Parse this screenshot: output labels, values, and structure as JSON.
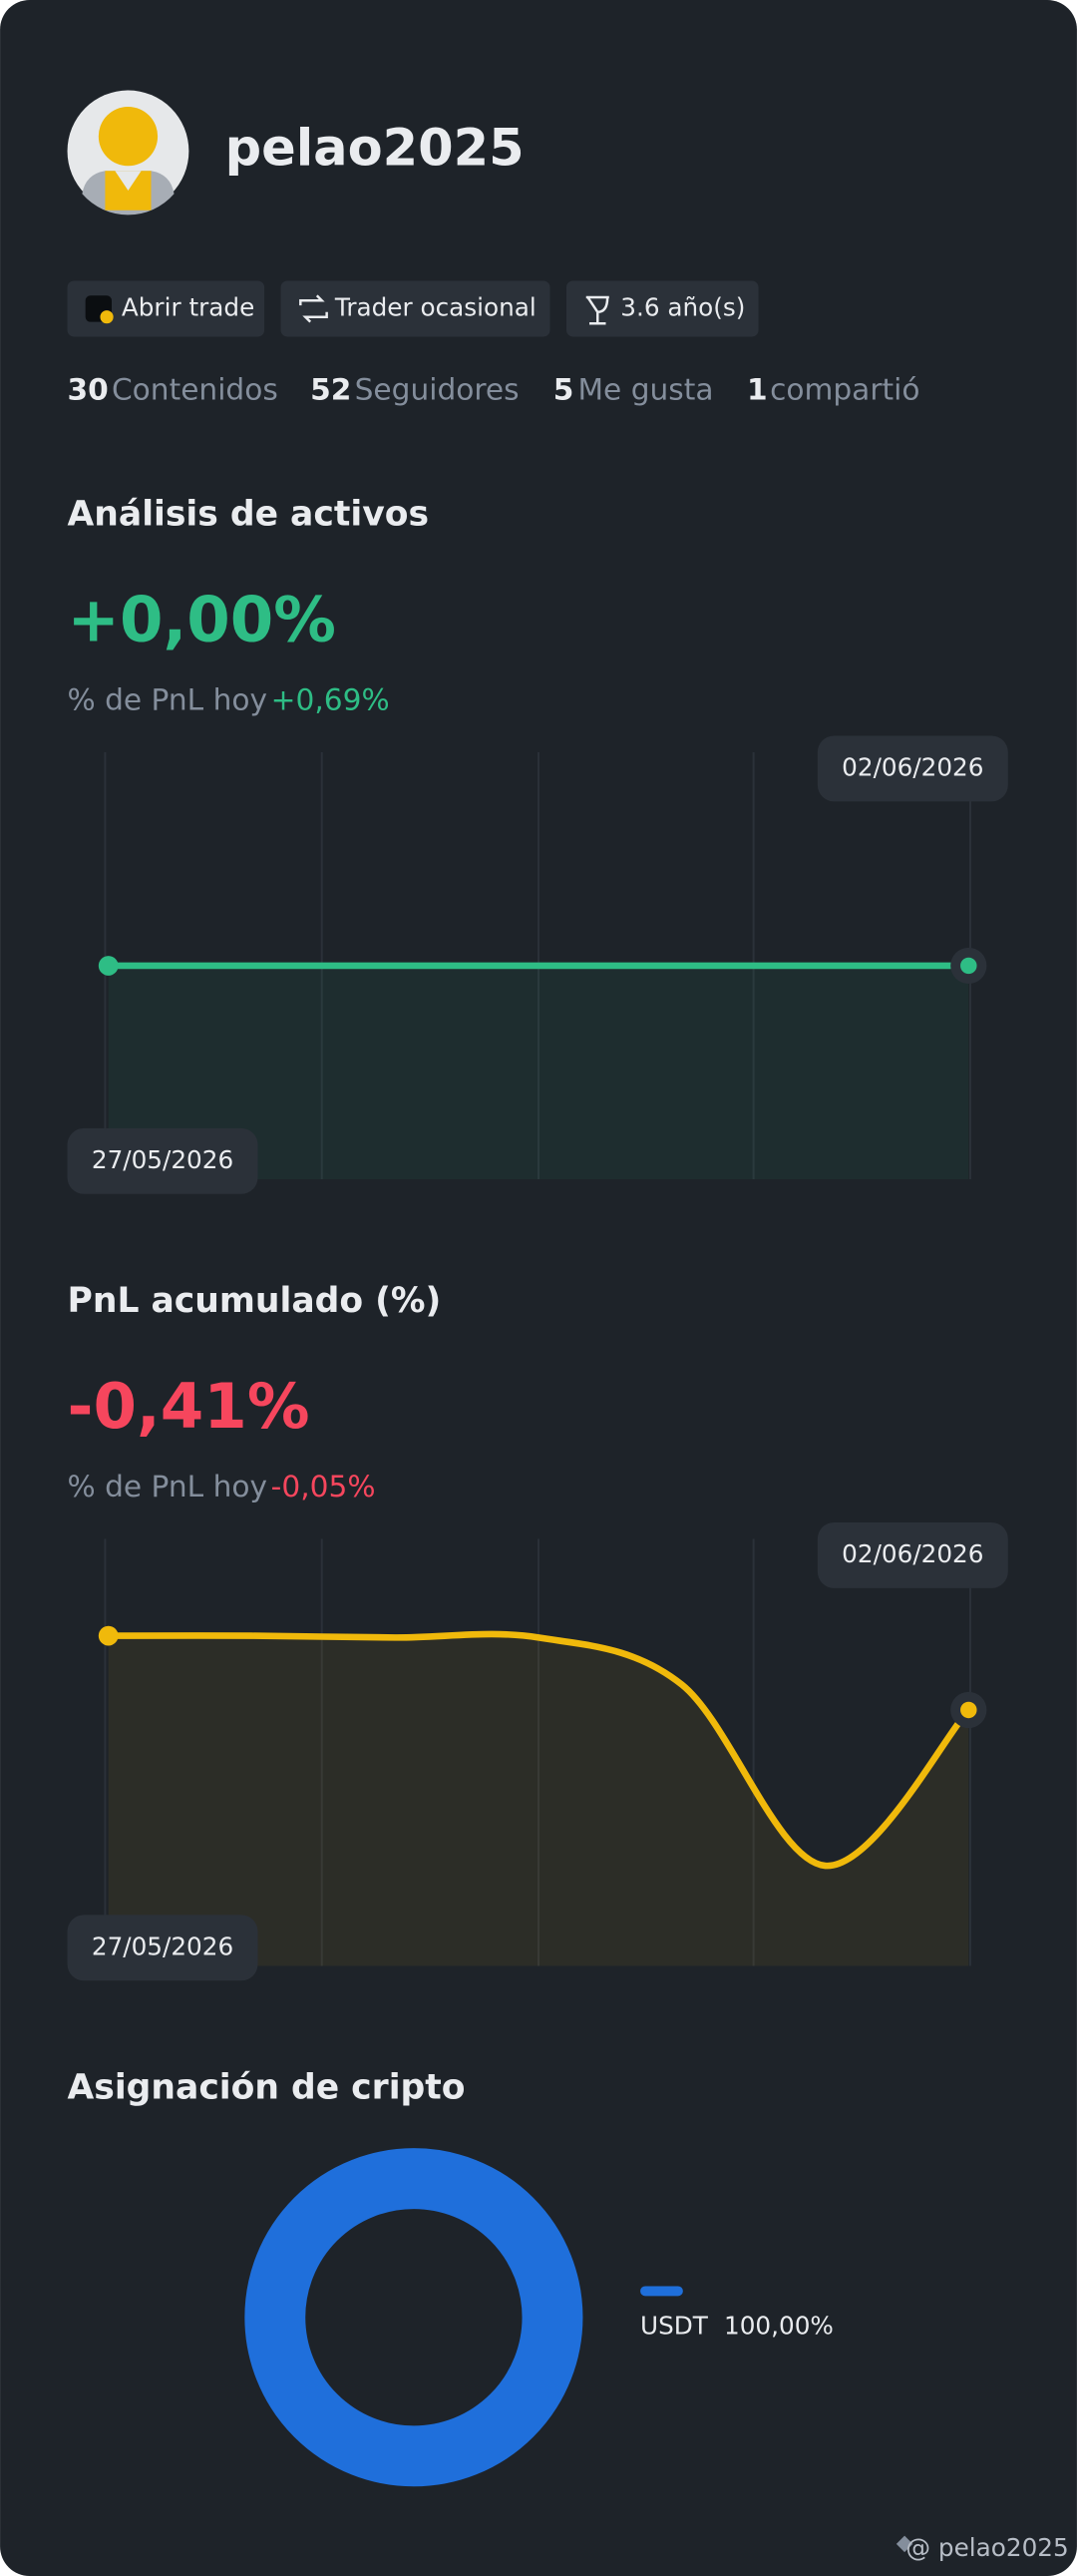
{
  "profile": {
    "username": "pelao2025"
  },
  "tags": [
    "Abrir trade",
    "Trader ocasional",
    "3.6 año(s)"
  ],
  "stats": [
    {
      "value": 30,
      "label": "Contenidos"
    },
    {
      "value": 52,
      "label": "Seguidores"
    },
    {
      "value": 5,
      "label": "Me gusta"
    },
    {
      "value": 1,
      "label": "compartió"
    }
  ],
  "asset_analysis": {
    "type": "line",
    "title": "Análisis de activos",
    "value": "+0,00%",
    "subtitle": "% de PnL hoy",
    "today": "+0,69%",
    "start_date": "27/05/2026",
    "end_date": "02/06/2026",
    "color": "#2ebd85",
    "values": [
      0,
      0,
      0,
      0,
      0,
      0,
      0
    ]
  },
  "pnl": {
    "type": "line",
    "title": "PnL acumulado (%)",
    "value": "-0,41%",
    "subtitle": "% de PnL hoy",
    "today": "-0,05%",
    "start_date": "27/05/2026",
    "end_date": "02/06/2026",
    "color": "#f0b90b",
    "values": [
      0,
      0,
      -0.01,
      -0.01,
      -0.27,
      -1.27,
      -0.41
    ]
  },
  "allocation": {
    "type": "pie",
    "title": "Asignación de cripto",
    "categories": [
      "USDT"
    ],
    "values": [
      100
    ],
    "value_labels": [
      "100,00%"
    ],
    "color": "#1f6fdb"
  },
  "watermark": "@ pelao2025"
}
